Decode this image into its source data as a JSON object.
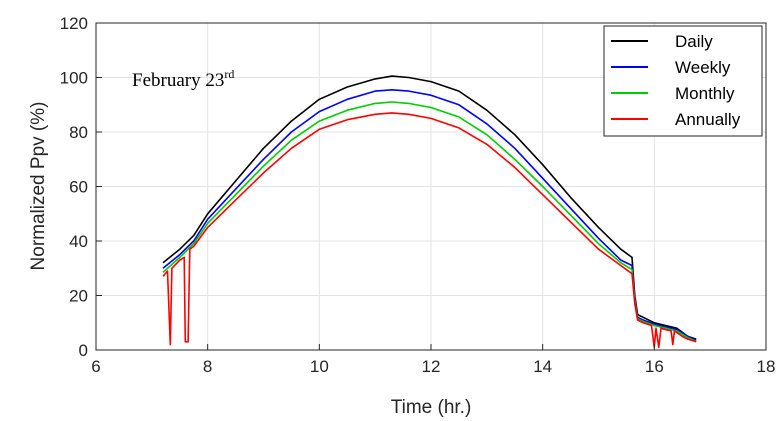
{
  "chart_data": {
    "type": "line",
    "title": "",
    "xlabel": "Time (hr.)",
    "ylabel": "Normalized Ppv (%)",
    "xlim": [
      6,
      18
    ],
    "ylim": [
      0,
      120
    ],
    "xticks": [
      6,
      8,
      10,
      12,
      14,
      16,
      18
    ],
    "yticks": [
      0,
      20,
      40,
      60,
      80,
      100,
      120
    ],
    "grid": true,
    "legend_position": "top-right",
    "annotation": {
      "text": "February 23",
      "superscript": "rd"
    },
    "series": [
      {
        "name": "Daily",
        "color": "#000000",
        "points": [
          [
            7.2,
            32
          ],
          [
            7.5,
            37
          ],
          [
            7.75,
            42
          ],
          [
            8,
            50
          ],
          [
            8.5,
            62
          ],
          [
            9,
            74
          ],
          [
            9.5,
            84
          ],
          [
            10,
            92
          ],
          [
            10.5,
            96.5
          ],
          [
            11,
            99.5
          ],
          [
            11.3,
            100.5
          ],
          [
            11.6,
            100
          ],
          [
            12,
            98.5
          ],
          [
            12.5,
            95
          ],
          [
            13,
            88
          ],
          [
            13.5,
            79
          ],
          [
            14,
            68
          ],
          [
            14.5,
            56
          ],
          [
            15,
            45
          ],
          [
            15.4,
            37
          ],
          [
            15.6,
            34
          ],
          [
            15.65,
            20
          ],
          [
            15.7,
            13
          ],
          [
            15.8,
            12
          ],
          [
            16,
            10
          ],
          [
            16.2,
            9
          ],
          [
            16.4,
            8
          ],
          [
            16.6,
            5
          ],
          [
            16.75,
            4
          ]
        ]
      },
      {
        "name": "Weekly",
        "color": "#0000ff",
        "points": [
          [
            7.2,
            30
          ],
          [
            7.5,
            35
          ],
          [
            7.75,
            40
          ],
          [
            8,
            48
          ],
          [
            8.5,
            59
          ],
          [
            9,
            70
          ],
          [
            9.5,
            80
          ],
          [
            10,
            87.5
          ],
          [
            10.5,
            92
          ],
          [
            11,
            95
          ],
          [
            11.3,
            95.5
          ],
          [
            11.6,
            95
          ],
          [
            12,
            93.5
          ],
          [
            12.5,
            90
          ],
          [
            13,
            83
          ],
          [
            13.5,
            74
          ],
          [
            14,
            63
          ],
          [
            14.5,
            52
          ],
          [
            15,
            41
          ],
          [
            15.4,
            33
          ],
          [
            15.6,
            31
          ],
          [
            15.65,
            19
          ],
          [
            15.7,
            12
          ],
          [
            15.8,
            11
          ],
          [
            16,
            9.5
          ],
          [
            16.2,
            8.5
          ],
          [
            16.4,
            7.5
          ],
          [
            16.6,
            5
          ],
          [
            16.75,
            3.5
          ]
        ]
      },
      {
        "name": "Monthly",
        "color": "#00cc00",
        "points": [
          [
            7.2,
            28.5
          ],
          [
            7.5,
            34
          ],
          [
            7.75,
            39
          ],
          [
            8,
            46.5
          ],
          [
            8.5,
            57
          ],
          [
            9,
            67.5
          ],
          [
            9.5,
            77
          ],
          [
            10,
            84
          ],
          [
            10.5,
            88
          ],
          [
            11,
            90.5
          ],
          [
            11.3,
            91
          ],
          [
            11.6,
            90.5
          ],
          [
            12,
            89
          ],
          [
            12.5,
            85.5
          ],
          [
            13,
            79
          ],
          [
            13.5,
            70
          ],
          [
            14,
            60
          ],
          [
            14.5,
            49.5
          ],
          [
            15,
            39
          ],
          [
            15.4,
            32
          ],
          [
            15.6,
            29.5
          ],
          [
            15.65,
            18
          ],
          [
            15.7,
            11.5
          ],
          [
            15.8,
            10.5
          ],
          [
            16,
            9
          ],
          [
            16.2,
            8
          ],
          [
            16.4,
            7
          ],
          [
            16.6,
            4.5
          ],
          [
            16.75,
            3.2
          ]
        ]
      },
      {
        "name": "Annually",
        "color": "#ff0000",
        "points": [
          [
            7.2,
            27
          ],
          [
            7.28,
            29
          ],
          [
            7.33,
            2
          ],
          [
            7.36,
            30
          ],
          [
            7.5,
            33
          ],
          [
            7.58,
            34
          ],
          [
            7.6,
            3
          ],
          [
            7.65,
            3
          ],
          [
            7.68,
            37
          ],
          [
            7.75,
            38
          ],
          [
            8,
            45
          ],
          [
            8.5,
            55
          ],
          [
            9,
            65
          ],
          [
            9.5,
            74
          ],
          [
            10,
            81
          ],
          [
            10.5,
            84.5
          ],
          [
            11,
            86.5
          ],
          [
            11.3,
            87
          ],
          [
            11.6,
            86.5
          ],
          [
            12,
            85
          ],
          [
            12.5,
            81.5
          ],
          [
            13,
            75.5
          ],
          [
            13.5,
            67
          ],
          [
            14,
            57
          ],
          [
            14.5,
            47
          ],
          [
            15,
            37
          ],
          [
            15.4,
            31
          ],
          [
            15.6,
            28
          ],
          [
            15.65,
            17
          ],
          [
            15.7,
            11
          ],
          [
            15.8,
            10
          ],
          [
            15.95,
            9
          ],
          [
            16,
            1
          ],
          [
            16.03,
            8
          ],
          [
            16.08,
            1
          ],
          [
            16.12,
            8
          ],
          [
            16.2,
            7.5
          ],
          [
            16.3,
            7
          ],
          [
            16.33,
            2
          ],
          [
            16.36,
            7
          ],
          [
            16.5,
            5
          ],
          [
            16.6,
            4
          ],
          [
            16.75,
            3
          ]
        ]
      }
    ]
  }
}
